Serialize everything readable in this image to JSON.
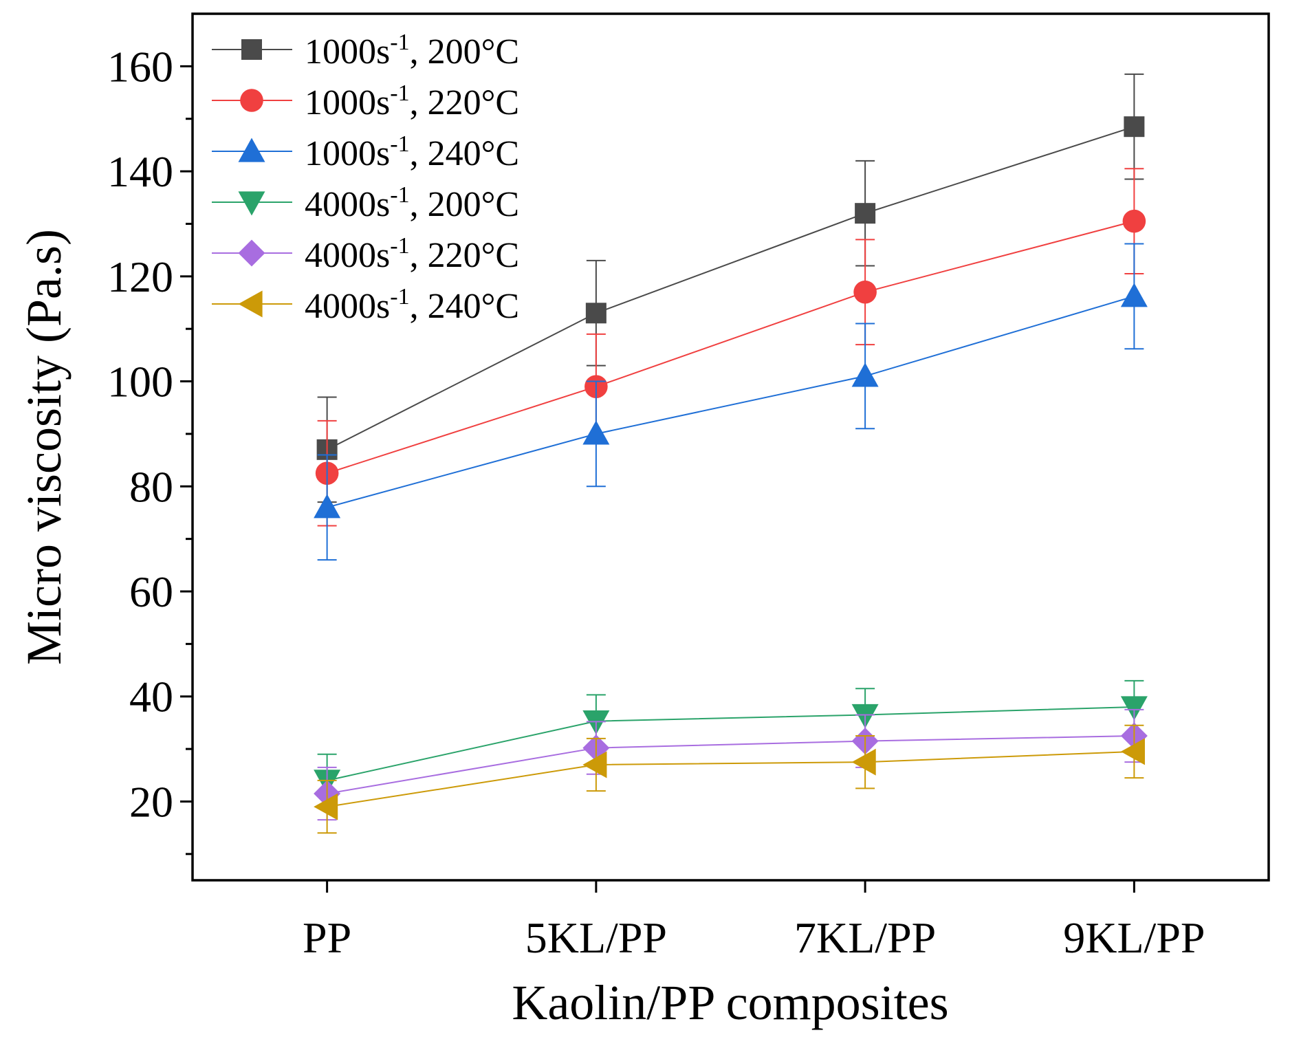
{
  "chart_data": {
    "type": "line",
    "xlabel": "Kaolin/PP composites",
    "ylabel": "Micro viscosity (Pa.s)",
    "categories": [
      "PP",
      "5KL/PP",
      "7KL/PP",
      "9KL/PP"
    ],
    "ylim": [
      5,
      170
    ],
    "yticks": [
      20,
      40,
      60,
      80,
      100,
      120,
      140,
      160
    ],
    "ytick_labels": [
      "20",
      "40",
      "60",
      "80",
      "100",
      "120",
      "140",
      "160"
    ],
    "grid": false,
    "legend_position": "top-left",
    "series": [
      {
        "name": "1000s-1, 200°C",
        "legend_base": "1000s",
        "legend_sup": "-1",
        "legend_tail": ", 200°C",
        "color": "#4a4a4a",
        "marker": "square",
        "values": [
          87,
          113,
          132,
          148.5
        ],
        "errors": [
          10,
          10,
          10,
          10
        ]
      },
      {
        "name": "1000s-1, 220°C",
        "legend_base": "1000s",
        "legend_sup": "-1",
        "legend_tail": ", 220°C",
        "color": "#f04040",
        "marker": "circle",
        "values": [
          82.5,
          99,
          117,
          130.5
        ],
        "errors": [
          10,
          10,
          10,
          10
        ]
      },
      {
        "name": "1000s-1, 240°C",
        "legend_base": "1000s",
        "legend_sup": "-1",
        "legend_tail": ", 240°C",
        "color": "#1f6fd6",
        "marker": "triangle-up",
        "values": [
          76,
          90,
          101,
          116.2
        ],
        "errors": [
          10,
          10,
          10,
          10
        ]
      },
      {
        "name": "4000s-1, 200°C",
        "legend_base": "4000s",
        "legend_sup": "-1",
        "legend_tail": ", 200°C",
        "color": "#2aa36a",
        "marker": "triangle-down",
        "values": [
          24,
          35.3,
          36.5,
          38
        ],
        "errors": [
          5,
          5,
          5,
          5
        ]
      },
      {
        "name": "4000s-1, 220°C",
        "legend_base": "4000s",
        "legend_sup": "-1",
        "legend_tail": ", 220°C",
        "color": "#a86de0",
        "marker": "diamond",
        "values": [
          21.5,
          30.2,
          31.5,
          32.5
        ],
        "errors": [
          5,
          5,
          5,
          5
        ]
      },
      {
        "name": "4000s-1, 240°C",
        "legend_base": "4000s",
        "legend_sup": "-1",
        "legend_tail": ", 240°C",
        "color": "#cc9a08",
        "marker": "triangle-left",
        "values": [
          19,
          27,
          27.5,
          29.5
        ],
        "errors": [
          5,
          5,
          5,
          5
        ]
      }
    ]
  }
}
